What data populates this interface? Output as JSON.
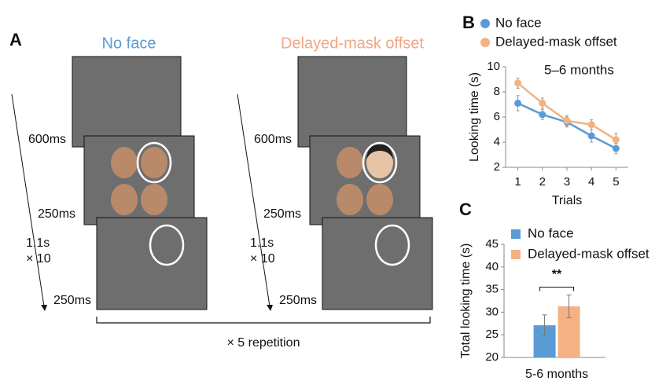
{
  "panels": {
    "a": "A",
    "b": "B",
    "c": "C"
  },
  "diagram": {
    "left": {
      "title": "No face",
      "t1": "600ms",
      "t2": "250ms",
      "t3": "250ms",
      "dur": "1.1s",
      "rep": "× 10"
    },
    "right": {
      "title": "Delayed-mask offset",
      "t1": "600ms",
      "t2": "250ms",
      "t3": "250ms",
      "dur": "1.1s",
      "rep": "× 10"
    },
    "footer": "× 5 repetition"
  },
  "chart_data": [
    {
      "type": "line",
      "annotation": "5–6 months",
      "x_label": "Trials",
      "y_label": "Looking time (s)",
      "x": [
        1,
        2,
        3,
        4,
        5
      ],
      "xlim": [
        0.5,
        5.5
      ],
      "xticks": [
        1,
        2,
        3,
        4,
        5
      ],
      "ylim": [
        2,
        10
      ],
      "yticks": [
        2,
        4,
        6,
        8,
        10
      ],
      "series": [
        {
          "name": "No face",
          "color": "#5b9bd5",
          "values": [
            7.1,
            6.2,
            5.6,
            4.5,
            3.5
          ],
          "errors": [
            0.6,
            0.4,
            0.4,
            0.5,
            0.4
          ]
        },
        {
          "name": "Delayed-mask offset",
          "color": "#f4b183",
          "values": [
            8.7,
            7.1,
            5.7,
            5.4,
            4.2
          ],
          "errors": [
            0.4,
            0.4,
            0.4,
            0.4,
            0.5
          ]
        }
      ]
    },
    {
      "type": "bar",
      "annotation": "**",
      "y_label": "Total looking time (s)",
      "categories": [
        "5-6 months"
      ],
      "ylim": [
        20,
        45
      ],
      "yticks": [
        20,
        25,
        30,
        35,
        40,
        45
      ],
      "series": [
        {
          "name": "No face",
          "color": "#5b9bd5",
          "values": [
            27.1
          ],
          "errors": [
            2.3
          ]
        },
        {
          "name": "Delayed-mask offset",
          "color": "#f4b183",
          "values": [
            31.3
          ],
          "errors": [
            2.5
          ]
        }
      ]
    }
  ]
}
